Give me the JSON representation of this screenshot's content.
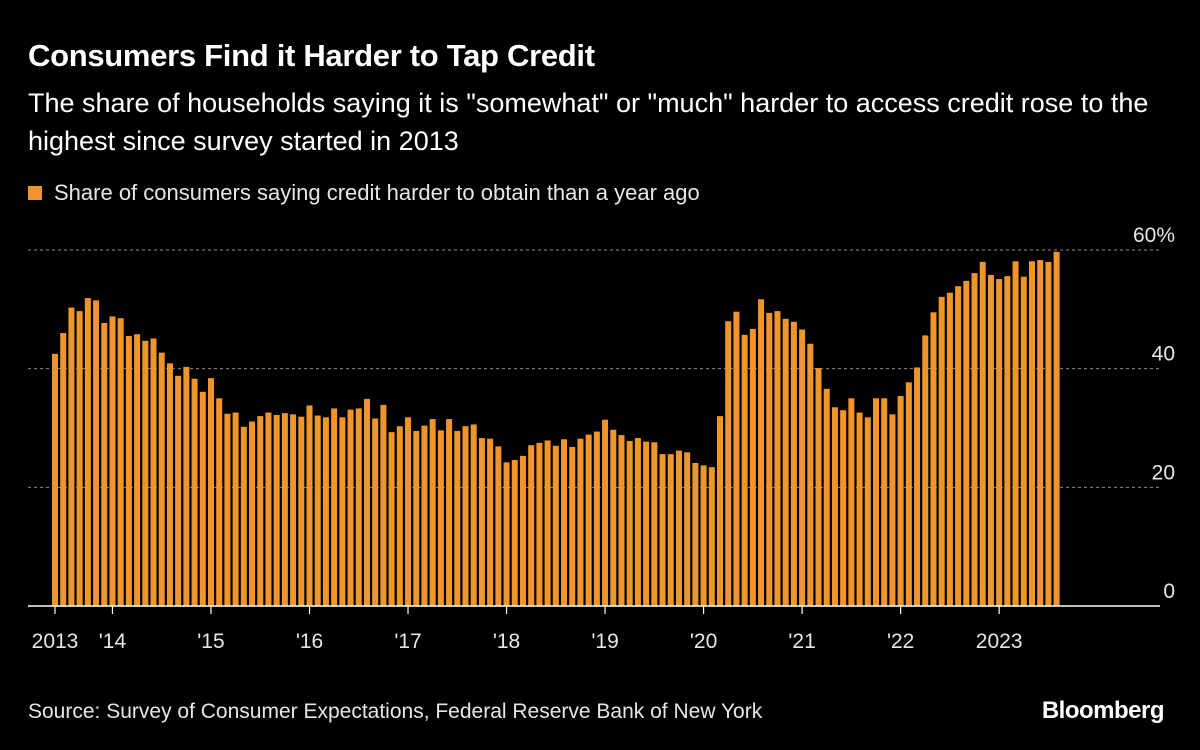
{
  "title": "Consumers Find it Harder to Tap Credit",
  "subtitle": "The share of households saying it is \"somewhat\" or \"much\" harder to access credit rose to the highest since survey started in 2013",
  "source": "Source: Survey of Consumer Expectations, Federal Reserve Bank of New York",
  "logo": "Bloomberg",
  "colors": {
    "bar": "#f0952a",
    "background": "#000000",
    "grid": "#8a8a8a"
  },
  "chart_data": {
    "type": "bar",
    "title": "Consumers Find it Harder to Tap Credit",
    "legend": [
      "Share of consumers saying credit harder to obtain than a year ago"
    ],
    "legend_position": "top-left",
    "frequency": "monthly",
    "start": "2013-06",
    "end": "2023-08",
    "ylim": [
      0,
      60
    ],
    "yticks": [
      0,
      20,
      40,
      60
    ],
    "ytick_labels": [
      "0",
      "20",
      "40",
      "60%"
    ],
    "xtick_labels": [
      "2013",
      "'14",
      "'15",
      "'16",
      "'17",
      "'18",
      "'19",
      "'20",
      "'21",
      "'22",
      "2023"
    ],
    "xtick_index": [
      0,
      7,
      19,
      31,
      43,
      55,
      67,
      79,
      91,
      103,
      115
    ],
    "grid": true,
    "values": [
      42.5,
      46,
      50.3,
      49.7,
      51.9,
      51.5,
      47.7,
      48.8,
      48.5,
      45.5,
      45.8,
      44.7,
      45.1,
      42.7,
      40.9,
      38.8,
      40.3,
      38.3,
      36.1,
      38.4,
      35.0,
      32.4,
      32.6,
      30.2,
      31.1,
      32.0,
      32.6,
      32.2,
      32.5,
      32.3,
      31.9,
      33.8,
      32.1,
      31.8,
      33.3,
      31.8,
      33.1,
      33.3,
      34.9,
      31.6,
      33.9,
      29.3,
      30.3,
      31.8,
      29.5,
      30.4,
      31.5,
      29.6,
      31.5,
      29.5,
      30.3,
      30.6,
      28.3,
      28.2,
      26.9,
      24.2,
      24.6,
      25.3,
      27.1,
      27.5,
      27.9,
      27.0,
      28.1,
      26.8,
      28.2,
      28.9,
      29.4,
      31.4,
      29.7,
      28.8,
      27.8,
      28.3,
      27.7,
      27.6,
      25.6,
      25.6,
      26.2,
      25.9,
      24.1,
      23.7,
      23.4,
      32.0,
      48.0,
      49.6,
      45.7,
      46.7,
      51.7,
      49.4,
      49.7,
      48.4,
      47.9,
      46.6,
      44.2,
      40.1,
      36.6,
      33.5,
      33.0,
      35.0,
      32.6,
      31.8,
      35.0,
      35.0,
      32.3,
      35.4,
      37.7,
      40.2,
      45.6,
      49.5,
      52.1,
      52.8,
      53.9,
      54.8,
      56.1,
      58.0,
      55.8,
      55.1,
      55.6,
      58.1,
      55.5,
      58.1,
      58.3,
      58.0,
      59.7
    ]
  }
}
